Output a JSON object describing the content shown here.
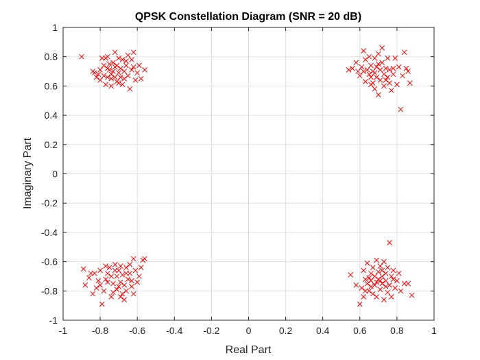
{
  "chart_data": {
    "type": "scatter",
    "title": "QPSK Constellation Diagram (SNR = 20 dB)",
    "xlabel": "Real Part",
    "ylabel": "Imaginary Part",
    "xlim": [
      -1,
      1
    ],
    "ylim": [
      -1,
      1
    ],
    "xticks": [
      -1,
      -0.8,
      -0.6,
      -0.4,
      -0.2,
      0,
      0.2,
      0.4,
      0.6,
      0.8,
      1
    ],
    "yticks": [
      -1,
      -0.8,
      -0.6,
      -0.4,
      -0.2,
      0,
      0.2,
      0.4,
      0.6,
      0.8,
      1
    ],
    "x_tick_labels": [
      "-1",
      "-0.8",
      "-0.6",
      "-0.4",
      "-0.2",
      "0",
      "0.2",
      "0.4",
      "0.6",
      "0.8",
      "1"
    ],
    "y_tick_labels": [
      "-1",
      "-0.8",
      "-0.6",
      "-0.4",
      "-0.2",
      "0",
      "0.2",
      "0.4",
      "0.6",
      "0.8",
      "1"
    ],
    "grid": true,
    "marker": "x",
    "marker_color": "#ff0000",
    "axis_color": "#262626",
    "grid_color": "#dfdfdf",
    "series": [
      {
        "points": [
          [
            -0.9,
            0.8
          ],
          [
            -0.83,
            0.69
          ],
          [
            -0.82,
            0.66
          ],
          [
            -0.8,
            0.71
          ],
          [
            -0.79,
            0.79
          ],
          [
            -0.78,
            0.74
          ],
          [
            -0.77,
            0.61
          ],
          [
            -0.77,
            0.79
          ],
          [
            -0.76,
            0.66
          ],
          [
            -0.76,
            0.8
          ],
          [
            -0.75,
            0.71
          ],
          [
            -0.74,
            0.68
          ],
          [
            -0.74,
            0.65
          ],
          [
            -0.73,
            0.76
          ],
          [
            -0.73,
            0.7
          ],
          [
            -0.72,
            0.83
          ],
          [
            -0.72,
            0.66
          ],
          [
            -0.71,
            0.63
          ],
          [
            -0.71,
            0.74
          ],
          [
            -0.7,
            0.69
          ],
          [
            -0.7,
            0.79
          ],
          [
            -0.69,
            0.66
          ],
          [
            -0.69,
            0.72
          ],
          [
            -0.68,
            0.78
          ],
          [
            -0.68,
            0.61
          ],
          [
            -0.67,
            0.7
          ],
          [
            -0.67,
            0.65
          ],
          [
            -0.66,
            0.74
          ],
          [
            -0.65,
            0.81
          ],
          [
            -0.65,
            0.67
          ],
          [
            -0.64,
            0.58
          ],
          [
            -0.63,
            0.71
          ],
          [
            -0.63,
            0.78
          ],
          [
            -0.62,
            0.83
          ],
          [
            -0.61,
            0.64
          ],
          [
            -0.6,
            0.69
          ],
          [
            -0.59,
            0.74
          ],
          [
            -0.58,
            0.65
          ],
          [
            -0.56,
            0.71
          ],
          [
            -0.84,
            0.7
          ],
          [
            -0.81,
            0.68
          ],
          [
            -0.78,
            0.67
          ],
          [
            -0.75,
            0.75
          ],
          [
            -0.74,
            0.6
          ],
          [
            -0.72,
            0.73
          ],
          [
            -0.7,
            0.62
          ],
          [
            -0.66,
            0.77
          ],
          [
            -0.62,
            0.73
          ],
          [
            -0.8,
            0.64
          ],
          [
            -0.76,
            0.72
          ]
        ]
      },
      {
        "points": [
          [
            0.54,
            0.71
          ],
          [
            0.56,
            0.72
          ],
          [
            0.58,
            0.76
          ],
          [
            0.59,
            0.7
          ],
          [
            0.6,
            0.67
          ],
          [
            0.61,
            0.73
          ],
          [
            0.62,
            0.84
          ],
          [
            0.63,
            0.63
          ],
          [
            0.63,
            0.78
          ],
          [
            0.64,
            0.71
          ],
          [
            0.65,
            0.68
          ],
          [
            0.65,
            0.8
          ],
          [
            0.66,
            0.66
          ],
          [
            0.66,
            0.74
          ],
          [
            0.67,
            0.62
          ],
          [
            0.67,
            0.7
          ],
          [
            0.68,
            0.79
          ],
          [
            0.68,
            0.58
          ],
          [
            0.69,
            0.73
          ],
          [
            0.69,
            0.66
          ],
          [
            0.7,
            0.82
          ],
          [
            0.7,
            0.54
          ],
          [
            0.71,
            0.71
          ],
          [
            0.71,
            0.64
          ],
          [
            0.72,
            0.76
          ],
          [
            0.72,
            0.86
          ],
          [
            0.73,
            0.68
          ],
          [
            0.73,
            0.6
          ],
          [
            0.74,
            0.72
          ],
          [
            0.75,
            0.66
          ],
          [
            0.75,
            0.79
          ],
          [
            0.76,
            0.62
          ],
          [
            0.76,
            0.71
          ],
          [
            0.77,
            0.57
          ],
          [
            0.78,
            0.68
          ],
          [
            0.79,
            0.79
          ],
          [
            0.8,
            0.61
          ],
          [
            0.81,
            0.73
          ],
          [
            0.82,
            0.44
          ],
          [
            0.83,
            0.67
          ],
          [
            0.84,
            0.83
          ],
          [
            0.85,
            0.72
          ],
          [
            0.86,
            0.7
          ],
          [
            0.87,
            0.62
          ],
          [
            0.74,
            0.64
          ],
          [
            0.68,
            0.69
          ],
          [
            0.62,
            0.7
          ],
          [
            0.7,
            0.75
          ],
          [
            0.66,
            0.61
          ],
          [
            0.78,
            0.72
          ]
        ]
      },
      {
        "points": [
          [
            -0.89,
            -0.65
          ],
          [
            -0.88,
            -0.76
          ],
          [
            -0.86,
            -0.71
          ],
          [
            -0.85,
            -0.68
          ],
          [
            -0.84,
            -0.82
          ],
          [
            -0.83,
            -0.68
          ],
          [
            -0.82,
            -0.78
          ],
          [
            -0.81,
            -0.73
          ],
          [
            -0.8,
            -0.66
          ],
          [
            -0.79,
            -0.89
          ],
          [
            -0.78,
            -0.8
          ],
          [
            -0.77,
            -0.72
          ],
          [
            -0.76,
            -0.68
          ],
          [
            -0.75,
            -0.64
          ],
          [
            -0.74,
            -0.84
          ],
          [
            -0.73,
            -0.75
          ],
          [
            -0.72,
            -0.62
          ],
          [
            -0.71,
            -0.7
          ],
          [
            -0.71,
            -0.79
          ],
          [
            -0.7,
            -0.66
          ],
          [
            -0.69,
            -0.74
          ],
          [
            -0.69,
            -0.84
          ],
          [
            -0.68,
            -0.69
          ],
          [
            -0.67,
            -0.76
          ],
          [
            -0.67,
            -0.86
          ],
          [
            -0.66,
            -0.64
          ],
          [
            -0.66,
            -0.8
          ],
          [
            -0.65,
            -0.72
          ],
          [
            -0.64,
            -0.68
          ],
          [
            -0.63,
            -0.77
          ],
          [
            -0.62,
            -0.58
          ],
          [
            -0.62,
            -0.82
          ],
          [
            -0.61,
            -0.66
          ],
          [
            -0.6,
            -0.74
          ],
          [
            -0.59,
            -0.7
          ],
          [
            -0.57,
            -0.59
          ],
          [
            -0.56,
            -0.58
          ],
          [
            -0.58,
            -0.64
          ],
          [
            -0.74,
            -0.7
          ],
          [
            -0.7,
            -0.77
          ],
          [
            -0.76,
            -0.74
          ],
          [
            -0.64,
            -0.62
          ],
          [
            -0.68,
            -0.82
          ],
          [
            -0.72,
            -0.66
          ],
          [
            -0.8,
            -0.76
          ],
          [
            -0.66,
            -0.68
          ],
          [
            -0.63,
            -0.73
          ],
          [
            -0.77,
            -0.63
          ],
          [
            -0.73,
            -0.81
          ],
          [
            -0.69,
            -0.63
          ]
        ]
      },
      {
        "points": [
          [
            0.55,
            -0.69
          ],
          [
            0.58,
            -0.76
          ],
          [
            0.6,
            -0.89
          ],
          [
            0.61,
            -0.78
          ],
          [
            0.62,
            -0.66
          ],
          [
            0.62,
            -0.84
          ],
          [
            0.63,
            -0.72
          ],
          [
            0.64,
            -0.75
          ],
          [
            0.64,
            -0.61
          ],
          [
            0.65,
            -0.8
          ],
          [
            0.66,
            -0.68
          ],
          [
            0.66,
            -0.73
          ],
          [
            0.67,
            -0.82
          ],
          [
            0.67,
            -0.64
          ],
          [
            0.68,
            -0.7
          ],
          [
            0.68,
            -0.76
          ],
          [
            0.69,
            -0.59
          ],
          [
            0.69,
            -0.84
          ],
          [
            0.7,
            -0.72
          ],
          [
            0.7,
            -0.67
          ],
          [
            0.71,
            -0.79
          ],
          [
            0.71,
            -0.63
          ],
          [
            0.72,
            -0.75
          ],
          [
            0.72,
            -0.7
          ],
          [
            0.73,
            -0.86
          ],
          [
            0.73,
            -0.6
          ],
          [
            0.74,
            -0.73
          ],
          [
            0.74,
            -0.68
          ],
          [
            0.75,
            -0.81
          ],
          [
            0.75,
            -0.64
          ],
          [
            0.76,
            -0.76
          ],
          [
            0.76,
            -0.47
          ],
          [
            0.77,
            -0.7
          ],
          [
            0.77,
            -0.84
          ],
          [
            0.78,
            -0.66
          ],
          [
            0.79,
            -0.78
          ],
          [
            0.8,
            -0.73
          ],
          [
            0.81,
            -0.68
          ],
          [
            0.82,
            -0.8
          ],
          [
            0.84,
            -0.75
          ],
          [
            0.86,
            -0.75
          ],
          [
            0.88,
            -0.83
          ],
          [
            0.66,
            -0.77
          ],
          [
            0.72,
            -0.66
          ],
          [
            0.74,
            -0.77
          ],
          [
            0.69,
            -0.74
          ],
          [
            0.65,
            -0.71
          ],
          [
            0.78,
            -0.72
          ],
          [
            0.63,
            -0.8
          ],
          [
            0.71,
            -0.73
          ]
        ]
      }
    ]
  }
}
